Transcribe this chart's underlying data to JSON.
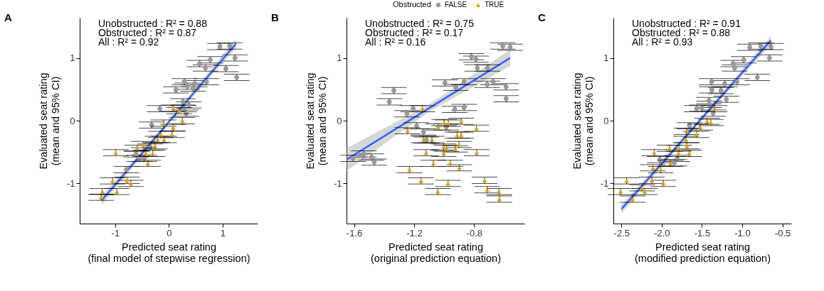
{
  "chart_data": [
    {
      "type": "scatter",
      "title": "A",
      "xlabel": "Predicted seat rating\n(final model of stepwise regression)",
      "ylabel": "Evaluated seat rating\n(mean and 95% CI)",
      "legend_title": "Obstructed",
      "legend": "top",
      "xlim": [
        -1.66,
        1.65
      ],
      "xticks": [
        -1,
        0,
        1
      ],
      "ylim": [
        -1.64,
        1.64
      ],
      "yticks": [
        -1,
        0,
        1
      ],
      "annotations": [
        "Unobstructed : R² = 0.88",
        "Obstructed : R² = 0.87",
        "All : R² = 0.92"
      ],
      "series": [
        {
          "name": "FALSE",
          "color": "#999999",
          "marker": "circle",
          "x": [
            0.95,
            1.13,
            0.57,
            0.68,
            0.77,
            1.06,
            1.23,
            1.26,
            0.7,
            0.29,
            0.13,
            0.34,
            0.48,
            0.45,
            0.26,
            0.28,
            0.32,
            0.37,
            -0.17,
            -0.32,
            -0.35,
            -0.46,
            -0.55,
            -0.61,
            -0.79
          ],
          "values": [
            1.18,
            1.19,
            0.91,
            0.84,
            0.97,
            0.83,
            1.0,
            0.69,
            0.62,
            0.62,
            0.49,
            0.55,
            0.59,
            0.52,
            0.3,
            0.19,
            0.12,
            0.25,
            0.19,
            -0.07,
            -0.42,
            -0.6,
            -0.6,
            -0.53,
            -0.78
          ],
          "errors": [
            0.05,
            0.05,
            0.05,
            0.05,
            0.05,
            0.05,
            0.05,
            0.05,
            0.05,
            0.05,
            0.05,
            0.05,
            0.05,
            0.05,
            0.05,
            0.05,
            0.05,
            0.05,
            0.05,
            0.05,
            0.05,
            0.05,
            0.05,
            0.05,
            0.05
          ]
        },
        {
          "name": "TRUE",
          "color": "#e69f00",
          "marker": "triangle",
          "x": [
            -0.99,
            -1.26,
            -1.24,
            -1.05,
            -0.97,
            -0.78,
            -0.71,
            -0.59,
            -0.47,
            -0.43,
            -0.39,
            -0.3,
            -0.26,
            -0.21,
            -0.15,
            -0.09,
            -0.1,
            0.06,
            0.08,
            0.08,
            0.25,
            0.19
          ],
          "values": [
            -0.51,
            -1.22,
            -1.13,
            -0.96,
            -1.13,
            -0.95,
            -1.0,
            -0.44,
            -0.38,
            -0.52,
            -0.68,
            -0.52,
            -0.4,
            -0.3,
            -0.22,
            -0.3,
            -0.04,
            -0.22,
            -0.11,
            0.2,
            0.0,
            0.16
          ],
          "errors": [
            0.05,
            0.05,
            0.05,
            0.05,
            0.05,
            0.05,
            0.05,
            0.05,
            0.05,
            0.05,
            0.05,
            0.05,
            0.05,
            0.05,
            0.05,
            0.05,
            0.05,
            0.05,
            0.05,
            0.05,
            0.05,
            0.05
          ]
        },
        {
          "type": "line",
          "color": "#3366ff",
          "x": [
            -1.25,
            0,
            1.25
          ],
          "values": [
            -1.27,
            -0.02,
            1.23
          ],
          "lower": [
            -1.34,
            -0.05,
            1.16
          ],
          "upper": [
            -1.2,
            0.01,
            1.3
          ]
        }
      ]
    },
    {
      "type": "scatter",
      "title": "B",
      "xlabel": "Predicted seat rating\n(original prediction equation)",
      "ylabel": "Evaluated seat rating\n(mean and 95% CI)",
      "xlim": [
        -1.65,
        -0.465
      ],
      "xticks": [
        -1.6,
        -1.2,
        -0.8
      ],
      "ylim": [
        -1.64,
        1.64
      ],
      "yticks": [
        -1,
        0,
        1
      ],
      "annotations": [
        "Unobstructed : R² = 0.75",
        "Obstructed : R² = 0.17",
        "All : R² = 0.16"
      ],
      "series": [
        {
          "color": "#999999",
          "marker": "circle",
          "x": [
            -1.335,
            -1.365,
            -1.248,
            -1.206,
            -1.183,
            -1.137,
            -1.118,
            -1.607,
            -1.535,
            -1.483,
            -1.466,
            -0.994,
            -0.985,
            -0.929,
            -0.922,
            -0.867,
            -0.867,
            -0.818,
            -0.788,
            -0.779,
            -0.711,
            -0.713,
            -0.674,
            -0.609,
            -0.56,
            -0.587,
            -0.587
          ],
          "values": [
            0.48,
            0.3,
            0.11,
            0.19,
            -0.08,
            -0.18,
            -0.31,
            -0.6,
            -0.53,
            -0.58,
            -0.66,
            0.6,
            -0.1,
            0.18,
            0.53,
            0.62,
            0.21,
            1.02,
            0.98,
            0.84,
            0.84,
            0.58,
            0.62,
            1.19,
            1.17,
            0.54,
            0.35
          ],
          "errors": [
            0.05,
            0.05,
            0.05,
            0.05,
            0.05,
            0.05,
            0.05,
            0.05,
            0.05,
            0.05,
            0.05,
            0.05,
            0.05,
            0.05,
            0.05,
            0.05,
            0.05,
            0.05,
            0.05,
            0.05,
            0.05,
            0.05,
            0.05,
            0.05,
            0.05,
            0.05,
            0.05
          ]
        },
        {
          "color": "#e69f00",
          "marker": "triangle",
          "x": [
            -1.145,
            -1.244,
            -1.231,
            -1.154,
            -1.137,
            -1.12,
            -1.081,
            -1.072,
            -1.042,
            -1.039,
            -1.0,
            -0.972,
            -1.003,
            -1.003,
            -0.985,
            -0.959,
            -0.974,
            -0.926,
            -0.913,
            -0.902,
            -0.899,
            -0.886,
            -0.886,
            -0.785,
            -0.783,
            -0.73,
            -0.713,
            -0.635,
            -0.632
          ],
          "values": [
            0.19,
            -0.16,
            -0.78,
            -0.96,
            -0.3,
            -0.51,
            -0.3,
            -0.68,
            -1.13,
            -0.1,
            -0.03,
            -0.04,
            -0.42,
            -0.52,
            -0.44,
            -0.68,
            -1.0,
            -0.45,
            -0.23,
            -0.38,
            -0.75,
            -0.01,
            -0.23,
            -0.12,
            -0.51,
            -0.95,
            -1.1,
            -1.13,
            -1.25
          ],
          "errors": [
            0.05,
            0.05,
            0.05,
            0.05,
            0.05,
            0.05,
            0.05,
            0.05,
            0.05,
            0.05,
            0.05,
            0.05,
            0.05,
            0.05,
            0.05,
            0.05,
            0.05,
            0.05,
            0.05,
            0.05,
            0.05,
            0.05,
            0.05,
            0.05,
            0.05,
            0.05,
            0.05,
            0.05,
            0.05
          ]
        },
        {
          "type": "line",
          "color": "#3366ff",
          "x": [
            -1.65,
            -1.1,
            -0.56
          ],
          "values": [
            -0.62,
            0.2,
            1.0
          ],
          "lower": [
            -0.8,
            0.14,
            0.87
          ],
          "upper": [
            -0.44,
            0.26,
            1.13
          ]
        }
      ]
    },
    {
      "type": "scatter",
      "title": "C",
      "xlabel": "Predicted seat rating\n(modified prediction equation)",
      "ylabel": "Evaluated seat rating\n(mean and 95% CI)",
      "xlim": [
        -2.6,
        -0.39
      ],
      "xticks": [
        -2.5,
        {
          "value": -2,
          "label": "-2.0"
        },
        -1.5,
        {
          "value": -1,
          "label": "-1.0"
        },
        -0.5
      ],
      "ylim": [
        -1.64,
        1.64
      ],
      "yticks": [
        -1,
        0,
        1
      ],
      "annotations": [
        "Unobstructed : R² = 0.91",
        "Obstructed : R² = 0.88",
        "All : R² = 0.93"
      ],
      "series": [
        {
          "color": "#999999",
          "marker": "circle",
          "x": [
            -0.906,
            -0.768,
            -0.643,
            -0.66,
            -0.981,
            -1.111,
            -1.094,
            -0.812,
            -1.065,
            -1.379,
            -1.377,
            -1.263,
            -1.215,
            -1.196,
            -1.413,
            -1.408,
            -1.5,
            -1.565,
            -1.36,
            -1.655,
            -1.807,
            -1.843,
            -2.024
          ],
          "values": [
            1.17,
            1.19,
            1.18,
            1.0,
            0.97,
            0.91,
            0.84,
            0.69,
            0.62,
            0.62,
            0.49,
            0.48,
            0.59,
            0.34,
            0.32,
            0.26,
            0.2,
            0.19,
            0.12,
            -0.08,
            -0.6,
            -0.67,
            -0.62
          ],
          "errors": [
            0.05,
            0.05,
            0.05,
            0.05,
            0.05,
            0.05,
            0.05,
            0.05,
            0.05,
            0.05,
            0.05,
            0.05,
            0.05,
            0.05,
            0.05,
            0.05,
            0.05,
            0.05,
            0.05,
            0.05,
            0.05,
            0.05,
            0.05
          ]
        },
        {
          "color": "#e69f00",
          "marker": "triangle",
          "x": [
            -2.512,
            -2.435,
            -2.362,
            -2.242,
            -2.21,
            -2.121,
            -2.109,
            -2.092,
            -2.012,
            -1.981,
            -1.891,
            -1.903,
            -1.79,
            -1.783,
            -1.686,
            -1.657,
            -1.698,
            -1.691,
            -1.57,
            -1.522,
            -1.437,
            -1.389,
            -1.341
          ],
          "values": [
            -1.13,
            -0.96,
            -1.25,
            -1.07,
            -1.13,
            -0.95,
            -0.75,
            -0.51,
            -0.78,
            -1.0,
            -0.68,
            -0.44,
            -0.52,
            -0.44,
            -0.4,
            -0.52,
            -0.3,
            -0.17,
            -0.22,
            -0.1,
            -0.01,
            -0.03,
            0.19
          ],
          "errors": [
            0.05,
            0.05,
            0.05,
            0.05,
            0.05,
            0.05,
            0.05,
            0.05,
            0.05,
            0.05,
            0.05,
            0.05,
            0.05,
            0.05,
            0.05,
            0.05,
            0.05,
            0.05,
            0.05,
            0.05,
            0.05,
            0.05,
            0.05
          ]
        },
        {
          "type": "line",
          "color": "#3366ff",
          "x": [
            -2.5,
            -1.57,
            -0.643
          ],
          "values": [
            -1.41,
            -0.06,
            1.28
          ],
          "lower": [
            -1.48,
            -0.09,
            1.21
          ],
          "upper": [
            -1.34,
            -0.03,
            1.35
          ]
        }
      ]
    }
  ]
}
